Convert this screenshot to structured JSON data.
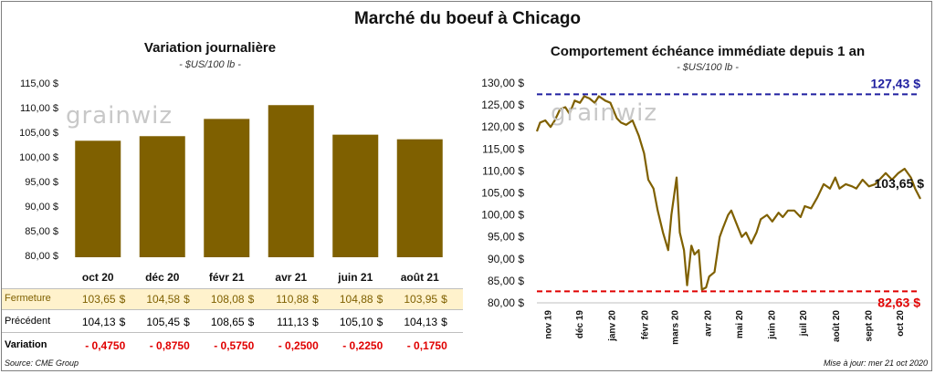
{
  "title": "Marché du boeuf à Chicago",
  "left_panel": {
    "title": "Variation  journalière",
    "unit": "- $US/100 lb -"
  },
  "right_panel": {
    "title": "Comportement  échéance immédiate depuis 1 an",
    "unit": "- $US/100 lb -"
  },
  "table": {
    "rows": [
      {
        "label": "Fermeture",
        "values": [
          "103,65",
          "104,58",
          "108,08",
          "110,88",
          "104,88",
          "103,95"
        ]
      },
      {
        "label": "Précédent",
        "values": [
          "104,13",
          "105,45",
          "108,65",
          "111,13",
          "105,10",
          "104,13"
        ]
      },
      {
        "label": "Variation",
        "values": [
          "- 0,4750",
          "- 0,8750",
          "- 0,5750",
          "- 0,2500",
          "- 0,2250",
          "- 0,1750"
        ]
      }
    ],
    "currency": "$"
  },
  "watermark": "grainwiz",
  "source": "Source: CME Group",
  "updated": "Mise à jour: mer 21 oct 2020",
  "colors": {
    "bar": "#7f6000",
    "line": "#7f6000",
    "high": "#1f1fa0",
    "low": "#e00000",
    "fermeture_bg": "#fff2cc",
    "negative": "#e00000"
  },
  "chart_data": [
    {
      "type": "bar",
      "title": "Variation  journalière",
      "categories": [
        "oct 20",
        "déc 20",
        "févr 21",
        "avr 21",
        "juin 21",
        "août 21"
      ],
      "values": [
        103.65,
        104.58,
        108.08,
        110.88,
        104.88,
        103.95
      ],
      "ylim": [
        80,
        115
      ],
      "yticks": [
        "80,00 $",
        "85,00 $",
        "90,00 $",
        "95,00 $",
        "100,00 $",
        "105,00 $",
        "110,00 $",
        "115,00 $"
      ],
      "ytick_values": [
        80,
        85,
        90,
        95,
        100,
        105,
        110,
        115
      ],
      "grid": false
    },
    {
      "type": "line",
      "title": "Comportement  échéance immédiate depuis 1 an",
      "ylim": [
        80,
        130
      ],
      "yticks": [
        "80,00 $",
        "85,00 $",
        "90,00 $",
        "95,00 $",
        "100,00 $",
        "105,00 $",
        "110,00 $",
        "115,00 $",
        "120,00 $",
        "125,00 $",
        "130,00 $"
      ],
      "ytick_values": [
        80,
        85,
        90,
        95,
        100,
        105,
        110,
        115,
        120,
        125,
        130
      ],
      "x_labels": [
        "nov 19",
        "déc 19",
        "janv 20",
        "févr 20",
        "mars 20",
        "avr 20",
        "mai 20",
        "juin 20",
        "juil 20",
        "août 20",
        "sept 20",
        "oct 20"
      ],
      "x": [
        "2019-10-22",
        "2019-10-25",
        "2019-10-30",
        "2019-11-04",
        "2019-11-08",
        "2019-11-13",
        "2019-11-18",
        "2019-11-22",
        "2019-11-27",
        "2019-12-02",
        "2019-12-06",
        "2019-12-11",
        "2019-12-16",
        "2019-12-20",
        "2019-12-26",
        "2019-12-31",
        "2020-01-06",
        "2020-01-10",
        "2020-01-15",
        "2020-01-21",
        "2020-01-27",
        "2020-02-01",
        "2020-02-05",
        "2020-02-10",
        "2020-02-14",
        "2020-02-19",
        "2020-02-24",
        "2020-02-27",
        "2020-03-03",
        "2020-03-06",
        "2020-03-10",
        "2020-03-13",
        "2020-03-17",
        "2020-03-20",
        "2020-03-24",
        "2020-03-27",
        "2020-03-31",
        "2020-04-03",
        "2020-04-08",
        "2020-04-13",
        "2020-04-16",
        "2020-04-21",
        "2020-04-24",
        "2020-04-29",
        "2020-05-04",
        "2020-05-08",
        "2020-05-13",
        "2020-05-18",
        "2020-05-22",
        "2020-05-28",
        "2020-06-02",
        "2020-06-08",
        "2020-06-12",
        "2020-06-17",
        "2020-06-23",
        "2020-06-29",
        "2020-07-03",
        "2020-07-09",
        "2020-07-15",
        "2020-07-21",
        "2020-07-27",
        "2020-08-01",
        "2020-08-05",
        "2020-08-11",
        "2020-08-17",
        "2020-08-21",
        "2020-08-27",
        "2020-09-02",
        "2020-09-08",
        "2020-09-14",
        "2020-09-18",
        "2020-09-24",
        "2020-09-30",
        "2020-10-06",
        "2020-10-12",
        "2020-10-16",
        "2020-10-21"
      ],
      "y": [
        119.0,
        121.0,
        121.5,
        120.0,
        121.5,
        124.0,
        124.5,
        123.0,
        126.0,
        125.5,
        127.0,
        126.5,
        125.5,
        127.0,
        126.0,
        125.5,
        122.0,
        121.0,
        120.5,
        121.5,
        118.0,
        114.0,
        108.0,
        106.0,
        101.0,
        96.0,
        92.0,
        100.0,
        108.5,
        96.0,
        92.0,
        84.0,
        93.0,
        91.0,
        92.0,
        83.0,
        83.5,
        86.0,
        87.0,
        95.0,
        97.0,
        100.0,
        101.0,
        98.0,
        95.0,
        96.0,
        93.5,
        96.0,
        99.0,
        100.0,
        98.5,
        100.5,
        99.5,
        101.0,
        101.0,
        99.5,
        102.0,
        101.5,
        104.0,
        107.0,
        106.0,
        108.5,
        106.0,
        107.0,
        106.5,
        106.0,
        108.0,
        106.5,
        107.0,
        108.5,
        109.5,
        108.0,
        109.5,
        110.5,
        108.5,
        106.0,
        103.65
      ],
      "annotations": {
        "high": "127,43 $",
        "low": "82,63 $",
        "last": "103,65 $"
      },
      "high_value": 127.43,
      "low_value": 82.63
    }
  ]
}
